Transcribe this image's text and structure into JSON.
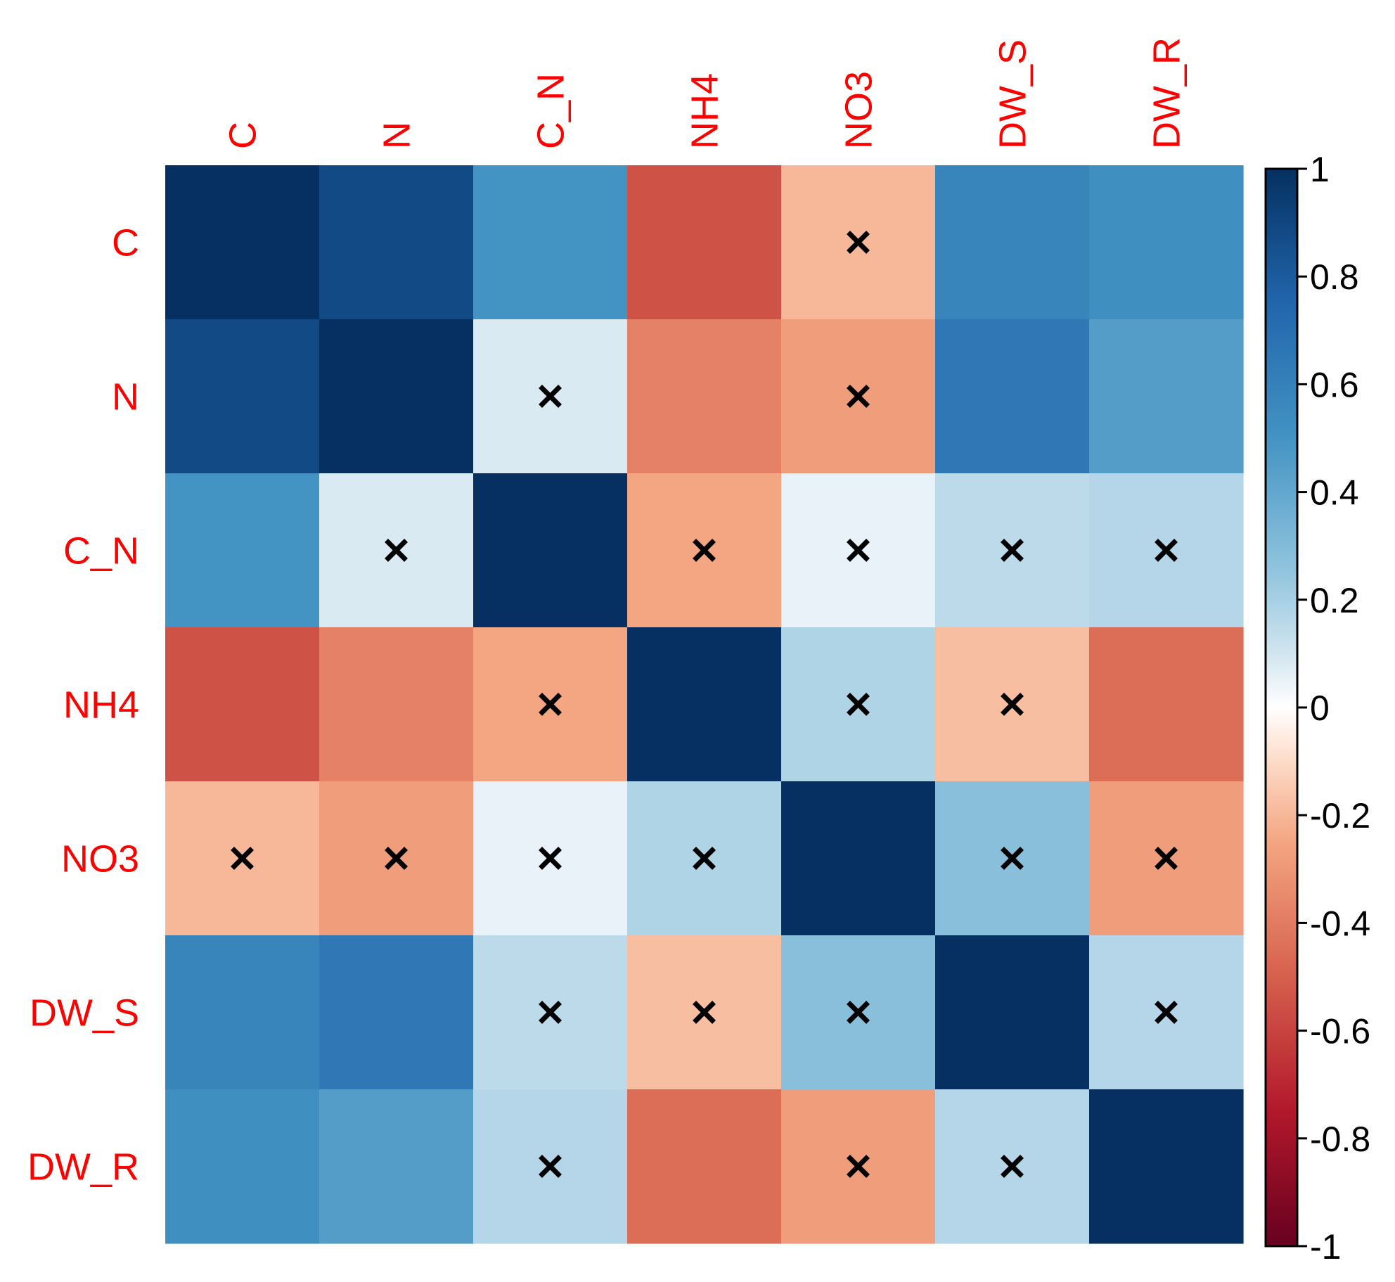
{
  "chart_data": {
    "type": "heatmap",
    "variables": [
      "C",
      "N",
      "C_N",
      "NH4",
      "NO3",
      "DW_S",
      "DW_R"
    ],
    "matrix": [
      [
        1.0,
        0.88,
        0.5,
        -0.55,
        -0.2,
        0.58,
        0.52
      ],
      [
        0.88,
        1.0,
        0.08,
        -0.38,
        -0.28,
        0.65,
        0.45
      ],
      [
        0.5,
        0.08,
        1.0,
        -0.25,
        0.05,
        0.15,
        0.17
      ],
      [
        -0.55,
        -0.38,
        -0.25,
        1.0,
        0.18,
        -0.18,
        -0.45
      ],
      [
        -0.2,
        -0.28,
        0.05,
        0.18,
        1.0,
        0.28,
        -0.28
      ],
      [
        0.58,
        0.65,
        0.15,
        -0.18,
        0.28,
        1.0,
        0.17
      ],
      [
        0.52,
        0.45,
        0.17,
        -0.45,
        -0.28,
        0.17,
        1.0
      ]
    ],
    "insignificant": [
      [
        false,
        false,
        false,
        false,
        true,
        false,
        false
      ],
      [
        false,
        false,
        true,
        false,
        true,
        false,
        false
      ],
      [
        false,
        true,
        false,
        true,
        true,
        true,
        true
      ],
      [
        false,
        false,
        true,
        false,
        true,
        true,
        false
      ],
      [
        true,
        true,
        true,
        true,
        false,
        true,
        true
      ],
      [
        false,
        false,
        true,
        true,
        true,
        false,
        true
      ],
      [
        false,
        false,
        true,
        false,
        true,
        true,
        false
      ]
    ],
    "colorbar": {
      "min": -1,
      "max": 1,
      "ticks": [
        "1",
        "0.8",
        "0.6",
        "0.4",
        "0.2",
        "0",
        "-0.2",
        "-0.4",
        "-0.6",
        "-0.8",
        "-1"
      ]
    },
    "colors": {
      "label": "#ff0000",
      "mark": "#000000"
    }
  }
}
